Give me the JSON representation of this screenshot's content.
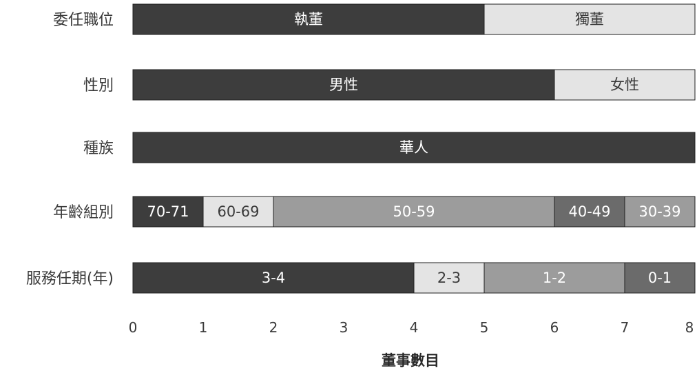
{
  "chart_data": {
    "type": "bar",
    "orientation": "horizontal",
    "stacked": true,
    "title": "",
    "xlabel": "董事數目",
    "ylabel": "",
    "xlim": [
      0,
      8
    ],
    "xticks": [
      "0",
      "1",
      "2",
      "3",
      "4",
      "5",
      "6",
      "7",
      "8"
    ],
    "grid": false,
    "legend": "none",
    "colors": {
      "dark": "#3d3d3d",
      "light": "#e4e4e4",
      "medium": "#9c9c9c",
      "darkgray": "#6b6b6b",
      "border": "#1f1f1f",
      "text_on_dark": "#ffffff",
      "text_on_light": "#3a3a3a"
    },
    "categories": [
      "委任職位",
      "性別",
      "種族",
      "年齡組別",
      "服務任期(年)"
    ],
    "rows": [
      {
        "category": "委任職位",
        "segments": [
          {
            "label": "執董",
            "value": 5,
            "color": "dark"
          },
          {
            "label": "獨董",
            "value": 3,
            "color": "light"
          }
        ]
      },
      {
        "category": "性別",
        "segments": [
          {
            "label": "男性",
            "value": 6,
            "color": "dark"
          },
          {
            "label": "女性",
            "value": 2,
            "color": "light"
          }
        ]
      },
      {
        "category": "種族",
        "segments": [
          {
            "label": "華人",
            "value": 8,
            "color": "dark"
          }
        ]
      },
      {
        "category": "年齡組別",
        "segments": [
          {
            "label": "70-71",
            "value": 1,
            "color": "dark"
          },
          {
            "label": "60-69",
            "value": 1,
            "color": "light"
          },
          {
            "label": "50-59",
            "value": 4,
            "color": "medium"
          },
          {
            "label": "40-49",
            "value": 1,
            "color": "darkgray"
          },
          {
            "label": "30-39",
            "value": 1,
            "color": "medium"
          }
        ]
      },
      {
        "category": "服務任期(年)",
        "segments": [
          {
            "label": "3-4",
            "value": 4,
            "color": "dark"
          },
          {
            "label": "2-3",
            "value": 1,
            "color": "light"
          },
          {
            "label": "1-2",
            "value": 2,
            "color": "medium"
          },
          {
            "label": "0-1",
            "value": 1,
            "color": "darkgray"
          }
        ]
      }
    ]
  }
}
